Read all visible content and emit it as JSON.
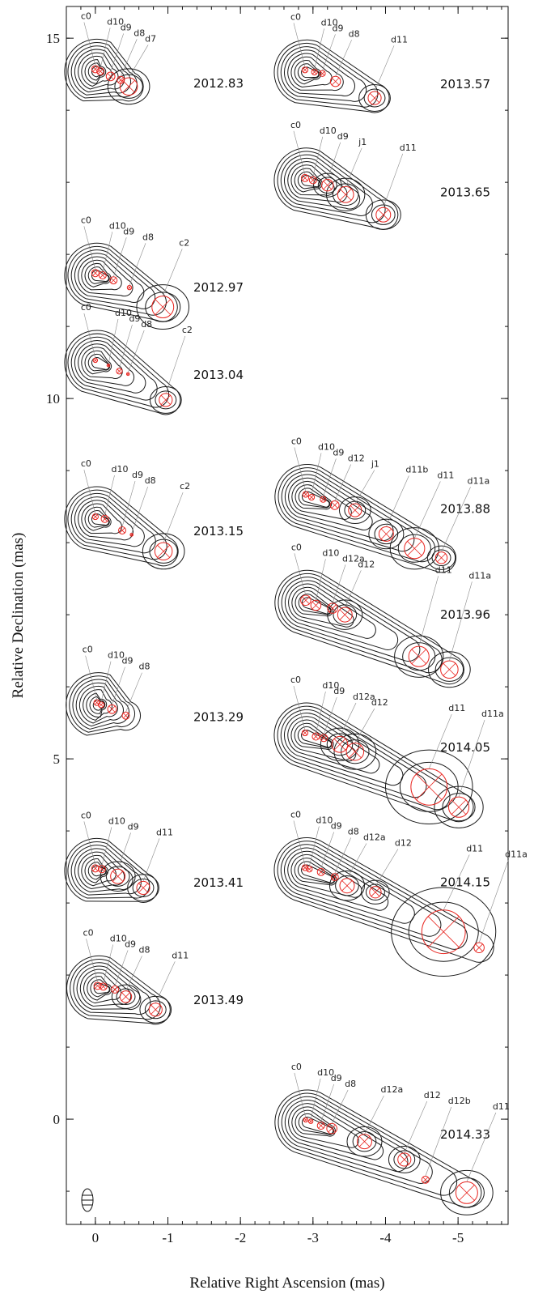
{
  "chart_data": {
    "type": "scatter",
    "xlabel": "Relative Right Ascension (mas)",
    "ylabel": "Relative Declination (mas)",
    "xlim": [
      0.4,
      -5.69
    ],
    "ylim": [
      -1.46,
      15.44
    ],
    "xticks": [
      0,
      -1,
      -2,
      -3,
      -4,
      -5
    ],
    "yticks": [
      0,
      5,
      10,
      15
    ],
    "component_color": "#e8231e",
    "contour_color": "#1a1a1a",
    "epochs": [
      {
        "label": "2012.83",
        "components": [
          {
            "name": "c0",
            "x": 0,
            "y": 14.57,
            "size": 0.05
          },
          {
            "name": "d10",
            "x": -0.07,
            "y": 14.54,
            "size": 0.05
          },
          {
            "name": "d9",
            "x": -0.21,
            "y": 14.47,
            "size": 0.06
          },
          {
            "name": "d8",
            "x": -0.35,
            "y": 14.42,
            "size": 0.05
          },
          {
            "name": "d7",
            "x": -0.46,
            "y": 14.33,
            "size": 0.12
          }
        ]
      },
      {
        "label": "2012.97",
        "components": [
          {
            "name": "c0",
            "x": 0,
            "y": 11.74,
            "size": 0.05
          },
          {
            "name": "d10",
            "x": -0.1,
            "y": 11.71,
            "size": 0.05
          },
          {
            "name": "d9",
            "x": -0.25,
            "y": 11.64,
            "size": 0.05
          },
          {
            "name": "d8",
            "x": -0.47,
            "y": 11.54,
            "size": 0.03
          },
          {
            "name": "c2",
            "x": -0.93,
            "y": 11.27,
            "size": 0.15
          }
        ]
      },
      {
        "label": "2013.04",
        "components": [
          {
            "name": "c0",
            "x": 0,
            "y": 10.53,
            "size": 0.03
          },
          {
            "name": "d10",
            "x": -0.18,
            "y": 10.46,
            "size": 0.02
          },
          {
            "name": "d9",
            "x": -0.33,
            "y": 10.38,
            "size": 0.04
          },
          {
            "name": "d8",
            "x": -0.45,
            "y": 10.34,
            "size": 0.02
          },
          {
            "name": "c2",
            "x": -0.97,
            "y": 9.98,
            "size": 0.09
          }
        ]
      },
      {
        "label": "2013.15",
        "components": [
          {
            "name": "c0",
            "x": 0,
            "y": 8.36,
            "size": 0.04
          },
          {
            "name": "d10",
            "x": -0.13,
            "y": 8.33,
            "size": 0.05
          },
          {
            "name": "d9",
            "x": -0.37,
            "y": 8.17,
            "size": 0.05
          },
          {
            "name": "d8",
            "x": -0.5,
            "y": 8.11,
            "size": 0.02
          },
          {
            "name": "c2",
            "x": -0.94,
            "y": 7.88,
            "size": 0.12
          }
        ]
      },
      {
        "label": "2013.29",
        "components": [
          {
            "name": "c0",
            "x": -0.02,
            "y": 5.78,
            "size": 0.04
          },
          {
            "name": "d10",
            "x": -0.08,
            "y": 5.75,
            "size": 0.04
          },
          {
            "name": "d9",
            "x": -0.23,
            "y": 5.69,
            "size": 0.06
          },
          {
            "name": "d8",
            "x": -0.42,
            "y": 5.6,
            "size": 0.05
          }
        ]
      },
      {
        "label": "2013.41",
        "components": [
          {
            "name": "c0",
            "x": 0,
            "y": 3.48,
            "size": 0.05
          },
          {
            "name": "d10",
            "x": -0.09,
            "y": 3.47,
            "size": 0.05
          },
          {
            "name": "d9",
            "x": -0.31,
            "y": 3.37,
            "size": 0.1
          },
          {
            "name": "d11",
            "x": -0.66,
            "y": 3.21,
            "size": 0.09
          }
        ]
      },
      {
        "label": "2013.49",
        "components": [
          {
            "name": "c0",
            "x": -0.03,
            "y": 1.85,
            "size": 0.05
          },
          {
            "name": "d10",
            "x": -0.11,
            "y": 1.84,
            "size": 0.05
          },
          {
            "name": "d9",
            "x": -0.27,
            "y": 1.8,
            "size": 0.05
          },
          {
            "name": "d8",
            "x": -0.42,
            "y": 1.7,
            "size": 0.08
          },
          {
            "name": "d11",
            "x": -0.83,
            "y": 1.52,
            "size": 0.09
          }
        ]
      },
      {
        "label": "2013.57",
        "components": [
          {
            "name": "c0",
            "x": -2.89,
            "y": 14.56,
            "size": 0.04
          },
          {
            "name": "d10",
            "x": -3.02,
            "y": 14.53,
            "size": 0.04
          },
          {
            "name": "d9",
            "x": -3.13,
            "y": 14.51,
            "size": 0.04
          },
          {
            "name": "d8",
            "x": -3.31,
            "y": 14.4,
            "size": 0.07
          },
          {
            "name": "d11",
            "x": -3.85,
            "y": 14.17,
            "size": 0.09
          }
        ]
      },
      {
        "label": "2013.65",
        "components": [
          {
            "name": "c0",
            "x": -2.89,
            "y": 13.06,
            "size": 0.05
          },
          {
            "name": "d10",
            "x": -3.0,
            "y": 13.03,
            "size": 0.05
          },
          {
            "name": "d9",
            "x": -3.2,
            "y": 12.96,
            "size": 0.08
          },
          {
            "name": "j1",
            "x": -3.45,
            "y": 12.83,
            "size": 0.11
          },
          {
            "name": "d11",
            "x": -3.97,
            "y": 12.55,
            "size": 0.1
          }
        ]
      },
      {
        "label": "2013.88",
        "components": [
          {
            "name": "c0",
            "x": -2.9,
            "y": 8.67,
            "size": 0.04
          },
          {
            "name": "d10",
            "x": -2.98,
            "y": 8.63,
            "size": 0.04
          },
          {
            "name": "d9",
            "x": -3.14,
            "y": 8.6,
            "size": 0.04
          },
          {
            "name": "d12",
            "x": -3.3,
            "y": 8.52,
            "size": 0.06
          },
          {
            "name": "j1",
            "x": -3.58,
            "y": 8.45,
            "size": 0.09
          },
          {
            "name": "d11b",
            "x": -4.01,
            "y": 8.12,
            "size": 0.1
          },
          {
            "name": "d11",
            "x": -4.4,
            "y": 7.92,
            "size": 0.14
          },
          {
            "name": "d11a",
            "x": -4.77,
            "y": 7.79,
            "size": 0.08
          }
        ]
      },
      {
        "label": "2013.96",
        "components": [
          {
            "name": "c0",
            "x": -2.9,
            "y": 7.2,
            "size": 0.07
          },
          {
            "name": "d10",
            "x": -3.04,
            "y": 7.13,
            "size": 0.07
          },
          {
            "name": "d12a",
            "x": -3.27,
            "y": 7.09,
            "size": 0.07
          },
          {
            "name": "d12",
            "x": -3.44,
            "y": 7.0,
            "size": 0.1
          },
          {
            "name": "d11",
            "x": -4.46,
            "y": 6.42,
            "size": 0.14
          },
          {
            "name": "d11a",
            "x": -4.88,
            "y": 6.24,
            "size": 0.12
          }
        ]
      },
      {
        "label": "2014.05",
        "components": [
          {
            "name": "c0",
            "x": -2.89,
            "y": 5.36,
            "size": 0.04
          },
          {
            "name": "d10",
            "x": -3.04,
            "y": 5.31,
            "size": 0.05
          },
          {
            "name": "d9",
            "x": -3.15,
            "y": 5.29,
            "size": 0.05
          },
          {
            "name": "d12a",
            "x": -3.37,
            "y": 5.2,
            "size": 0.11
          },
          {
            "name": "d12",
            "x": -3.58,
            "y": 5.1,
            "size": 0.12
          },
          {
            "name": "d11",
            "x": -4.6,
            "y": 4.61,
            "size": 0.25
          },
          {
            "name": "d11a",
            "x": -5.01,
            "y": 4.33,
            "size": 0.14
          }
        ]
      },
      {
        "label": "2014.15",
        "components": [
          {
            "name": "c0",
            "x": -2.89,
            "y": 3.49,
            "size": 0.04
          },
          {
            "name": "d10",
            "x": -2.95,
            "y": 3.47,
            "size": 0.04
          },
          {
            "name": "d9",
            "x": -3.11,
            "y": 3.43,
            "size": 0.05
          },
          {
            "name": "d8",
            "x": -3.3,
            "y": 3.36,
            "size": 0.05
          },
          {
            "name": "d12a",
            "x": -3.47,
            "y": 3.24,
            "size": 0.1
          },
          {
            "name": "d12",
            "x": -3.86,
            "y": 3.15,
            "size": 0.08
          },
          {
            "name": "d11",
            "x": -4.8,
            "y": 2.6,
            "size": 0.3
          },
          {
            "name": "d11a",
            "x": -5.29,
            "y": 2.38,
            "size": 0.07
          }
        ]
      },
      {
        "label": "2014.33",
        "components": [
          {
            "name": "c0",
            "x": -2.9,
            "y": -0.01,
            "size": 0.03
          },
          {
            "name": "d10",
            "x": -2.97,
            "y": -0.03,
            "size": 0.03
          },
          {
            "name": "d9",
            "x": -3.11,
            "y": -0.09,
            "size": 0.05
          },
          {
            "name": "d8",
            "x": -3.26,
            "y": -0.13,
            "size": 0.07
          },
          {
            "name": "d12a",
            "x": -3.71,
            "y": -0.31,
            "size": 0.1
          },
          {
            "name": "d12",
            "x": -4.26,
            "y": -0.56,
            "size": 0.09
          },
          {
            "name": "d12b",
            "x": -4.55,
            "y": -0.84,
            "size": 0.05
          },
          {
            "name": "d11",
            "x": -5.12,
            "y": -1.02,
            "size": 0.15
          }
        ]
      }
    ]
  }
}
